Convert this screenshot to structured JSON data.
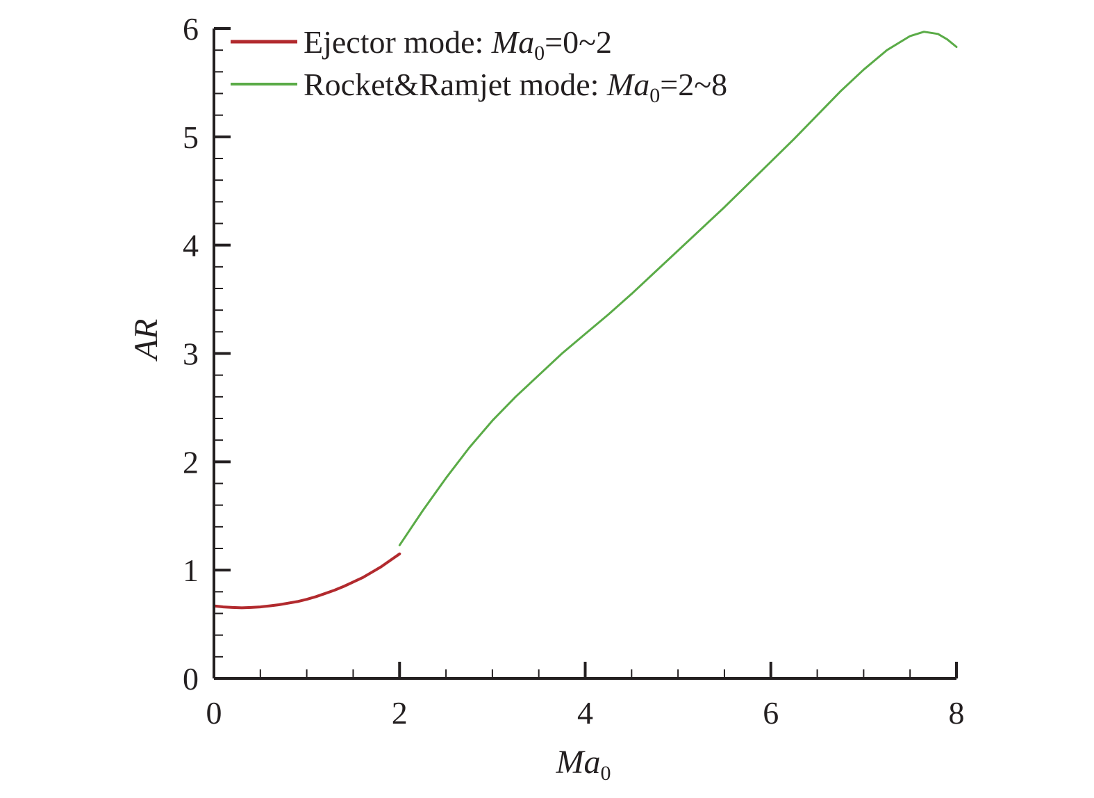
{
  "chart_data": {
    "type": "line",
    "title": "",
    "xlabel": {
      "main": "Ma",
      "sub": "0"
    },
    "ylabel": "AR",
    "xlim": [
      0,
      8
    ],
    "ylim": [
      0,
      6
    ],
    "x_ticks": [
      "0",
      "2",
      "4",
      "6",
      "8"
    ],
    "y_ticks": [
      "0",
      "1",
      "2",
      "3",
      "4",
      "5",
      "6"
    ],
    "grid": false,
    "legend_position": "top-left",
    "series": [
      {
        "name": "Ejector mode: Ma0=0~2",
        "legend": {
          "prefix": "Ejector mode: ",
          "ital": "Ma",
          "sub": "0",
          "suffix": "=0~2"
        },
        "color": "#b22a2e",
        "points": [
          [
            0.0,
            0.67
          ],
          [
            0.1,
            0.66
          ],
          [
            0.2,
            0.655
          ],
          [
            0.3,
            0.652
          ],
          [
            0.4,
            0.655
          ],
          [
            0.5,
            0.66
          ],
          [
            0.6,
            0.67
          ],
          [
            0.7,
            0.68
          ],
          [
            0.8,
            0.695
          ],
          [
            0.9,
            0.71
          ],
          [
            1.0,
            0.73
          ],
          [
            1.1,
            0.755
          ],
          [
            1.2,
            0.785
          ],
          [
            1.3,
            0.815
          ],
          [
            1.4,
            0.85
          ],
          [
            1.5,
            0.89
          ],
          [
            1.6,
            0.93
          ],
          [
            1.7,
            0.98
          ],
          [
            1.8,
            1.03
          ],
          [
            1.9,
            1.09
          ],
          [
            2.0,
            1.15
          ]
        ]
      },
      {
        "name": "Rocket&Ramjet mode: Ma0=2~8",
        "legend": {
          "prefix": "Rocket&Ramjet mode: ",
          "ital": "Ma",
          "sub": "0",
          "suffix": "=2~8"
        },
        "color": "#5aab47",
        "points": [
          [
            2.0,
            1.23
          ],
          [
            2.25,
            1.55
          ],
          [
            2.5,
            1.85
          ],
          [
            2.75,
            2.13
          ],
          [
            3.0,
            2.38
          ],
          [
            3.25,
            2.6
          ],
          [
            3.5,
            2.8
          ],
          [
            3.75,
            3.0
          ],
          [
            4.0,
            3.18
          ],
          [
            4.25,
            3.36
          ],
          [
            4.5,
            3.55
          ],
          [
            4.75,
            3.75
          ],
          [
            5.0,
            3.95
          ],
          [
            5.25,
            4.15
          ],
          [
            5.5,
            4.35
          ],
          [
            5.75,
            4.56
          ],
          [
            6.0,
            4.77
          ],
          [
            6.25,
            4.98
          ],
          [
            6.5,
            5.2
          ],
          [
            6.75,
            5.42
          ],
          [
            7.0,
            5.62
          ],
          [
            7.25,
            5.8
          ],
          [
            7.5,
            5.93
          ],
          [
            7.65,
            5.97
          ],
          [
            7.8,
            5.95
          ],
          [
            7.9,
            5.9
          ],
          [
            8.0,
            5.83
          ]
        ]
      }
    ]
  }
}
